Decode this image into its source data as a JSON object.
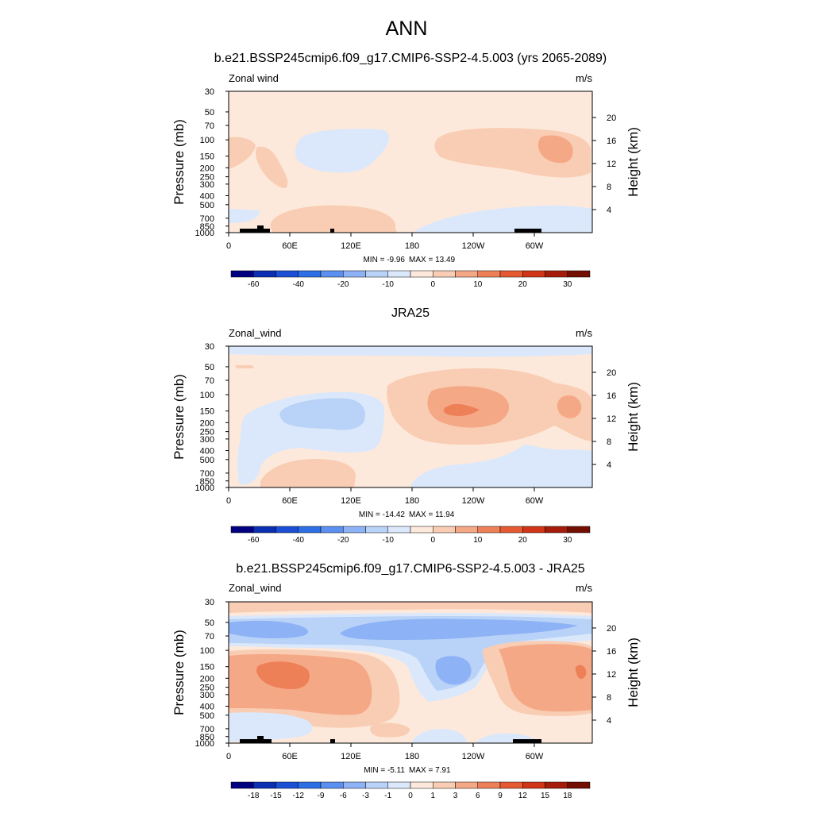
{
  "figure": {
    "title": "ANN"
  },
  "colors": {
    "full_scale": [
      "#000080",
      "#0a2fb3",
      "#1a4fd6",
      "#2e6fe6",
      "#5b8ff0",
      "#8db2f5",
      "#b9d2f8",
      "#dbe8fb",
      "#fde9db",
      "#f9cdb3",
      "#f4a886",
      "#ee8058",
      "#e55a32",
      "#cf3516",
      "#a51c0a",
      "#730e03"
    ],
    "diff_scale": [
      "#000080",
      "#0a2fb3",
      "#1a4fd6",
      "#2e6fe6",
      "#5b8ff0",
      "#8db2f5",
      "#b9d2f8",
      "#dbe8fb",
      "#fde9db",
      "#f9cdb3",
      "#f4a886",
      "#ee8058",
      "#e55a32",
      "#cf3516",
      "#a51c0a",
      "#730e03"
    ],
    "topography": "#000000"
  },
  "chart_data": [
    {
      "type": "heatmap",
      "panel_title": "b.e21.BSSP245cmip6.f09_g17.CMIP6-SSP2-4.5.003 (yrs 2065-2089)",
      "variable": "Zonal wind",
      "units": "m/s",
      "ylabel": "Pressure (mb)",
      "ylabel_right": "Height (km)",
      "x_ticks": [
        "0",
        "60E",
        "120E",
        "180",
        "120W",
        "60W"
      ],
      "y_ticks": [
        "30",
        "50",
        "70",
        "100",
        "150",
        "200",
        "250",
        "300",
        "400",
        "500",
        "700",
        "850",
        "1000"
      ],
      "y_ticks_right": [
        "20",
        "16",
        "12",
        "8",
        "4"
      ],
      "ylim": [
        1000,
        30
      ],
      "xlim": [
        0,
        355
      ],
      "min_label": "MIN = -9.96",
      "max_label": "MAX = 13.49",
      "colorbar_labels": [
        "-60",
        "-40",
        "-20",
        "-10",
        "0",
        "10",
        "20",
        "30"
      ],
      "colorbar_levels": [
        -70,
        -60,
        -50,
        -40,
        -30,
        -20,
        -15,
        -10,
        -5,
        0,
        5,
        10,
        15,
        20,
        25,
        30,
        35
      ]
    },
    {
      "type": "heatmap",
      "panel_title": "JRA25",
      "variable": "Zonal_wind",
      "units": "m/s",
      "ylabel": "Pressure (mb)",
      "ylabel_right": "Height (km)",
      "x_ticks": [
        "0",
        "60E",
        "120E",
        "180",
        "120W",
        "60W"
      ],
      "y_ticks": [
        "30",
        "50",
        "70",
        "100",
        "150",
        "200",
        "250",
        "300",
        "400",
        "500",
        "700",
        "850",
        "1000"
      ],
      "y_ticks_right": [
        "20",
        "16",
        "12",
        "8",
        "4"
      ],
      "ylim": [
        1000,
        30
      ],
      "xlim": [
        0,
        355
      ],
      "min_label": "MIN = -14.42",
      "max_label": "MAX = 11.94",
      "colorbar_labels": [
        "-60",
        "-40",
        "-20",
        "-10",
        "0",
        "10",
        "20",
        "30"
      ],
      "colorbar_levels": [
        -70,
        -60,
        -50,
        -40,
        -30,
        -20,
        -15,
        -10,
        -5,
        0,
        5,
        10,
        15,
        20,
        25,
        30,
        35
      ]
    },
    {
      "type": "heatmap",
      "panel_title": "b.e21.BSSP245cmip6.f09_g17.CMIP6-SSP2-4.5.003 - JRA25",
      "variable": "Zonal_wind",
      "units": "m/s",
      "ylabel": "Pressure (mb)",
      "ylabel_right": "Height (km)",
      "x_ticks": [
        "0",
        "60E",
        "120E",
        "180",
        "120W",
        "60W"
      ],
      "y_ticks": [
        "30",
        "50",
        "70",
        "100",
        "150",
        "200",
        "250",
        "300",
        "400",
        "500",
        "700",
        "850",
        "1000"
      ],
      "y_ticks_right": [
        "20",
        "16",
        "12",
        "8",
        "4"
      ],
      "ylim": [
        1000,
        30
      ],
      "xlim": [
        0,
        355
      ],
      "min_label": "MIN = -5.11",
      "max_label": "MAX = 7.91",
      "colorbar_labels": [
        "-18",
        "-15",
        "-12",
        "-9",
        "-6",
        "-3",
        "-1",
        "0",
        "1",
        "3",
        "6",
        "9",
        "12",
        "15",
        "18"
      ],
      "colorbar_levels": [
        -21,
        -18,
        -15,
        -12,
        -9,
        -6,
        -3,
        -1,
        0,
        1,
        3,
        6,
        9,
        12,
        15,
        18,
        21
      ]
    }
  ]
}
